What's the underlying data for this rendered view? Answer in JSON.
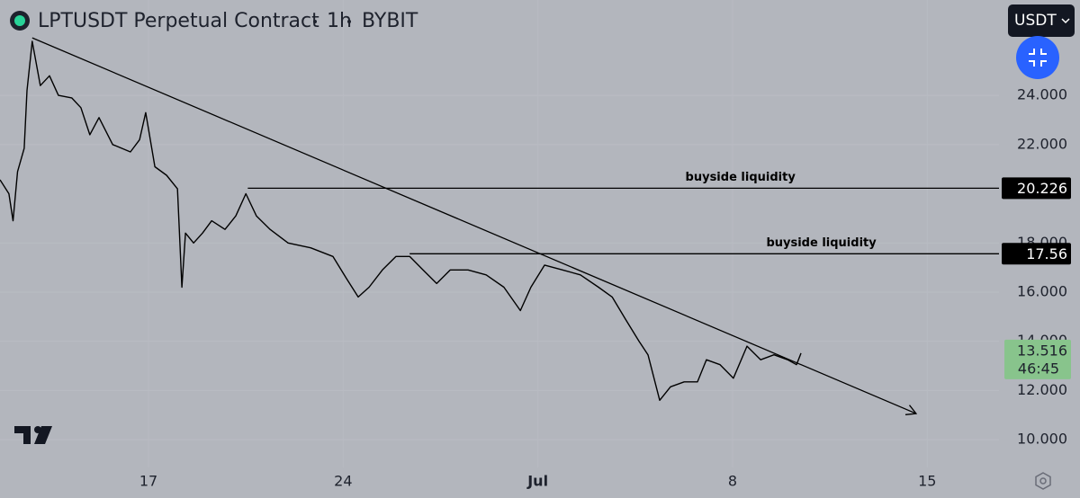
{
  "chart_data": {
    "type": "line",
    "header": {
      "symbol": "LPTUSDT Perpetual Contract",
      "interval": "1h",
      "exchange": "BYBIT",
      "currency": "USDT"
    },
    "x": [
      11.66,
      11.98,
      12.13,
      12.29,
      12.53,
      12.63,
      12.82,
      13.11,
      13.44,
      13.76,
      14.24,
      14.57,
      14.89,
      15.22,
      15.71,
      16.35,
      16.68,
      16.9,
      17.23,
      17.65,
      18.04,
      18.2,
      18.33,
      18.62,
      18.94,
      19.27,
      19.75,
      20.14,
      20.5,
      20.88,
      21.37,
      22.02,
      22.83,
      23.63,
      24.12,
      24.54,
      24.93,
      25.41,
      25.9,
      26.39,
      26.87,
      27.36,
      27.85,
      28.49,
      29.14,
      29.78,
      30.37,
      30.75,
      31.24,
      31.89,
      32.53,
      33.18,
      33.67,
      34.15,
      34.64,
      34.96,
      35.38,
      35.77,
      36.26,
      36.74,
      37.06,
      37.55,
      38.03,
      38.52,
      39.01,
      39.49,
      39.98,
      40.3,
      40.46
    ],
    "series": [
      {
        "name": "LPTUSDT",
        "color": "#000000",
        "values": [
          20.57,
          20.0,
          18.9,
          20.9,
          21.85,
          24.2,
          26.2,
          24.4,
          24.8,
          24.0,
          23.9,
          23.5,
          22.4,
          23.1,
          22.0,
          21.7,
          22.2,
          23.3,
          21.1,
          20.75,
          20.2,
          16.2,
          18.4,
          18.0,
          18.4,
          18.9,
          18.55,
          19.1,
          20.0,
          19.1,
          18.55,
          18.0,
          17.8,
          17.45,
          16.55,
          15.8,
          16.2,
          16.9,
          17.45,
          17.45,
          16.9,
          16.35,
          16.9,
          16.9,
          16.7,
          16.2,
          15.25,
          16.2,
          17.1,
          16.9,
          16.7,
          16.2,
          15.8,
          14.9,
          14.0,
          13.45,
          11.6,
          12.15,
          12.35,
          12.35,
          13.25,
          13.05,
          12.5,
          13.8,
          13.25,
          13.45,
          13.25,
          13.05,
          13.516
        ]
      }
    ],
    "xlim": [
      11.66,
      47.58
    ],
    "xticks": [
      17,
      24,
      {
        "value": 31,
        "label": "Jul"
      },
      {
        "value": 38,
        "label": "8"
      },
      {
        "value": 45,
        "label": "15"
      }
    ],
    "ylim": [
      8.87,
      27.88
    ],
    "yticks": [
      {
        "value": 10,
        "label": "10.000"
      },
      {
        "value": 12,
        "label": "12.000"
      },
      {
        "value": 14,
        "label": "14.000"
      },
      {
        "value": 16,
        "label": "16.000"
      },
      {
        "value": 18,
        "label": "18.000"
      },
      {
        "value": 22,
        "label": "22.000"
      },
      {
        "value": 24,
        "label": "24.000"
      }
    ],
    "grid": true,
    "levels": [
      {
        "text": "buyside liquidity",
        "value": 20.226,
        "x": 20.57
      },
      {
        "text": "buyside liquidity",
        "value": 17.56,
        "x": 26.39
      }
    ],
    "trendline": {
      "x": [
        12.82,
        44.6
      ],
      "y": [
        26.34,
        11.06
      ]
    },
    "last_price": 13.516,
    "countdown": "46:45"
  }
}
